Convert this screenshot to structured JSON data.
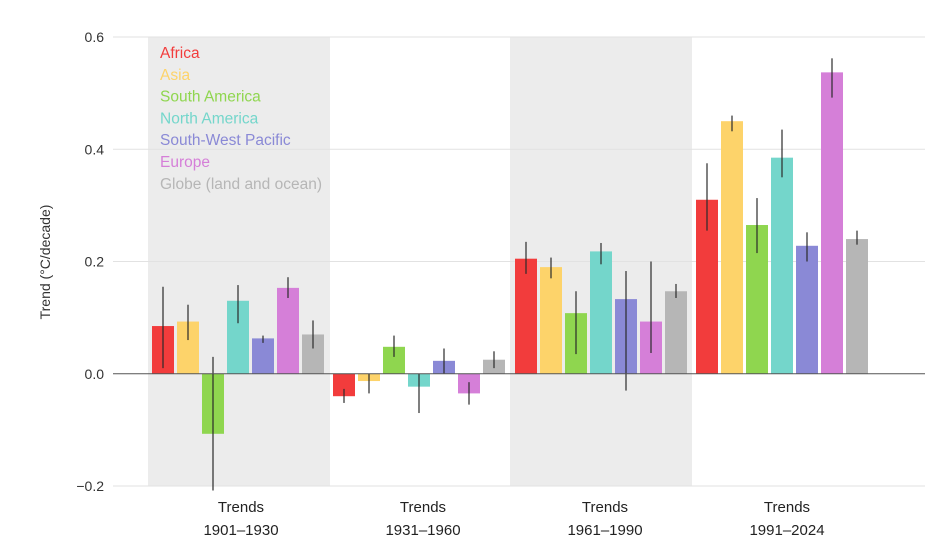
{
  "chart_data": {
    "type": "bar",
    "ylabel": "Trend (°C/decade)",
    "ylim": [
      -0.2,
      0.6
    ],
    "yticks": [
      "0.6",
      "0.4",
      "0.2",
      "0.0",
      "−0.2"
    ],
    "ytick_values": [
      0.6,
      0.4,
      0.2,
      0.0,
      -0.2
    ],
    "grid": true,
    "legend_position": "top-left",
    "categories": [
      {
        "line1": "Trends",
        "line2": "1901–1930",
        "shaded": true
      },
      {
        "line1": "Trends",
        "line2": "1931–1960",
        "shaded": false
      },
      {
        "line1": "Trends",
        "line2": "1961–1990",
        "shaded": true
      },
      {
        "line1": "Trends",
        "line2": "1991–2024",
        "shaded": false
      }
    ],
    "series": [
      {
        "name": "Africa",
        "color": "#f23c3c",
        "values": [
          0.085,
          -0.04,
          0.205,
          0.31
        ],
        "errors": [
          [
            0.01,
            0.155
          ],
          [
            -0.052,
            -0.027
          ],
          [
            0.178,
            0.235
          ],
          [
            0.255,
            0.375
          ]
        ]
      },
      {
        "name": "Asia",
        "color": "#fdd36a",
        "values": [
          0.093,
          -0.013,
          0.19,
          0.45
        ],
        "errors": [
          [
            0.06,
            0.123
          ],
          [
            -0.035,
            0.0
          ],
          [
            0.17,
            0.207
          ],
          [
            0.432,
            0.46
          ]
        ]
      },
      {
        "name": "South America",
        "color": "#8fd64f",
        "values": [
          -0.107,
          0.048,
          0.108,
          0.265
        ],
        "errors": [
          [
            -0.208,
            0.03
          ],
          [
            0.03,
            0.068
          ],
          [
            0.035,
            0.147
          ],
          [
            0.215,
            0.313
          ]
        ]
      },
      {
        "name": "North America",
        "color": "#74d6cb",
        "values": [
          0.13,
          -0.023,
          0.218,
          0.385
        ],
        "errors": [
          [
            0.09,
            0.158
          ],
          [
            -0.07,
            0.0
          ],
          [
            0.195,
            0.233
          ],
          [
            0.35,
            0.435
          ]
        ]
      },
      {
        "name": "South-West Pacific",
        "color": "#8a89d6",
        "values": [
          0.063,
          0.023,
          0.133,
          0.228
        ],
        "errors": [
          [
            0.055,
            0.068
          ],
          [
            0.0,
            0.045
          ],
          [
            -0.03,
            0.183
          ],
          [
            0.2,
            0.252
          ]
        ]
      },
      {
        "name": "Europe",
        "color": "#d57fd8",
        "values": [
          0.153,
          -0.035,
          0.093,
          0.537
        ],
        "errors": [
          [
            0.135,
            0.172
          ],
          [
            -0.055,
            -0.015
          ],
          [
            0.037,
            0.2
          ],
          [
            0.492,
            0.562
          ]
        ]
      },
      {
        "name": "Globe (land and ocean)",
        "color": "#b6b6b6",
        "values": [
          0.07,
          0.025,
          0.147,
          0.24
        ],
        "errors": [
          [
            0.045,
            0.095
          ],
          [
            0.01,
            0.04
          ],
          [
            0.135,
            0.16
          ],
          [
            0.23,
            0.255
          ]
        ]
      }
    ]
  }
}
